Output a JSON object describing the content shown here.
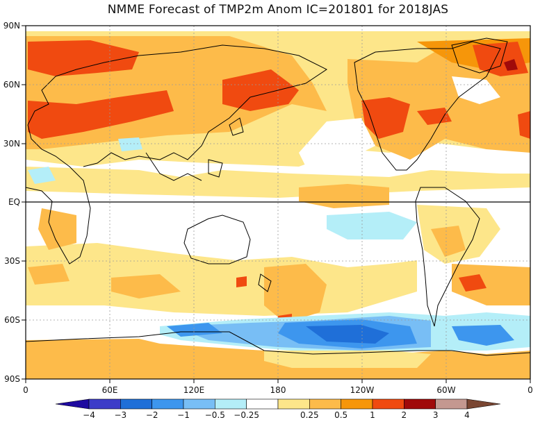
{
  "title": "NMME Forecast of TMP2m Anom   IC=201801 for 2018JAS",
  "lat_labels": [
    "90N",
    "60N",
    "30N",
    "EQ",
    "30S",
    "60S",
    "90S"
  ],
  "lon_labels": [
    "0",
    "60E",
    "120E",
    "180",
    "120W",
    "60W",
    "0"
  ],
  "colorbar": {
    "labels": [
      "−4",
      "−3",
      "−2",
      "−1",
      "−0.5",
      "−0.25",
      "0.25",
      "0.5",
      "1",
      "2",
      "3",
      "4"
    ],
    "colors": [
      "#1e0aa0",
      "#3c3cc8",
      "#1f6fd8",
      "#3d96ee",
      "#78bef5",
      "#b4eef8",
      "#ffffff",
      "#fde68a",
      "#fdbb4a",
      "#f6960a",
      "#f04a10",
      "#a00a0a",
      "#c49890",
      "#7a4632"
    ]
  },
  "map_colors": {
    "land_outline": "#000000",
    "grid": "#9a9a9a",
    "equator": "#000000"
  }
}
